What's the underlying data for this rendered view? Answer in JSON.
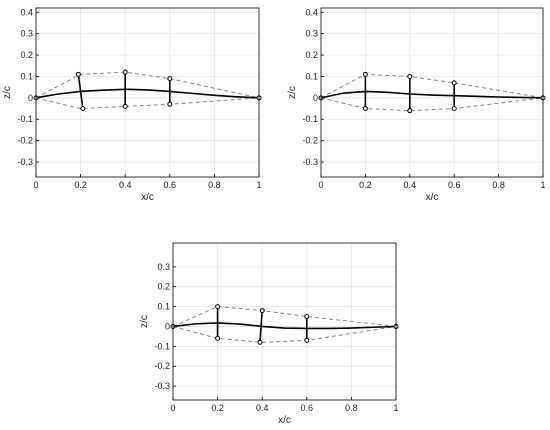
{
  "chart_data": [
    {
      "type": "line",
      "xlabel": "x/c",
      "ylabel": "z/c",
      "xlim": [
        0,
        1
      ],
      "ylim": [
        -0.37,
        0.42
      ],
      "xticks": [
        0,
        0.2,
        0.4,
        0.6,
        0.8,
        1
      ],
      "yticks": [
        -0.3,
        -0.2,
        -0.1,
        0,
        0.1,
        0.2,
        0.3,
        0.4
      ],
      "xtick_labels": [
        "0",
        "0.2",
        "0.4",
        "0.6",
        "0.8",
        "1"
      ],
      "ytick_labels": [
        "-0.3",
        "-0.2",
        "-0.1",
        "0",
        "0.1",
        "0.2",
        "0.3",
        "0.4"
      ],
      "grid": true,
      "series": [
        {
          "style": "dashed",
          "color": "#777777",
          "x": [
            0,
            0.2,
            0.4,
            0.6,
            1
          ],
          "y": [
            0,
            0.11,
            0.12,
            0.09,
            0
          ]
        },
        {
          "style": "dashed",
          "color": "#777777",
          "x": [
            0,
            0.2,
            0.4,
            0.6,
            1
          ],
          "y": [
            0,
            -0.05,
            -0.04,
            -0.03,
            0
          ]
        },
        {
          "style": "solid",
          "color": "#000000",
          "x": [
            0,
            0.1,
            0.2,
            0.3,
            0.4,
            0.5,
            0.6,
            0.7,
            0.8,
            0.9,
            1
          ],
          "y": [
            0,
            0.018,
            0.03,
            0.036,
            0.04,
            0.037,
            0.03,
            0.021,
            0.012,
            0.005,
            0
          ]
        }
      ],
      "struts": [
        {
          "top": [
            0.19,
            0.11
          ],
          "bottom": [
            0.21,
            -0.05
          ]
        },
        {
          "top": [
            0.4,
            0.12
          ],
          "bottom": [
            0.4,
            -0.04
          ]
        },
        {
          "top": [
            0.6,
            0.09
          ],
          "bottom": [
            0.6,
            -0.03
          ]
        }
      ]
    },
    {
      "type": "line",
      "xlabel": "x/c",
      "ylabel": "z/c",
      "xlim": [
        0,
        1
      ],
      "ylim": [
        -0.37,
        0.42
      ],
      "xticks": [
        0,
        0.2,
        0.4,
        0.6,
        0.8,
        1
      ],
      "yticks": [
        -0.3,
        -0.2,
        -0.1,
        0,
        0.1,
        0.2,
        0.3,
        0.4
      ],
      "xtick_labels": [
        "0",
        "0.2",
        "0.4",
        "0.6",
        "0.8",
        "1"
      ],
      "ytick_labels": [
        "-0.3",
        "-0.2",
        "-0.1",
        "0",
        "0.1",
        "0.2",
        "0.3",
        "0.4"
      ],
      "grid": true,
      "series": [
        {
          "style": "dashed",
          "color": "#777777",
          "x": [
            0,
            0.2,
            0.4,
            0.6,
            1
          ],
          "y": [
            0,
            0.11,
            0.1,
            0.07,
            0
          ]
        },
        {
          "style": "dashed",
          "color": "#777777",
          "x": [
            0,
            0.2,
            0.4,
            0.6,
            1
          ],
          "y": [
            0,
            -0.05,
            -0.06,
            -0.05,
            0
          ]
        },
        {
          "style": "solid",
          "color": "#000000",
          "x": [
            0,
            0.1,
            0.2,
            0.3,
            0.4,
            0.5,
            0.6,
            0.7,
            0.8,
            0.9,
            1
          ],
          "y": [
            0,
            0.022,
            0.03,
            0.026,
            0.018,
            0.013,
            0.01,
            0.007,
            0.004,
            0.002,
            0
          ]
        }
      ],
      "struts": [
        {
          "top": [
            0.2,
            0.11
          ],
          "bottom": [
            0.2,
            -0.05
          ]
        },
        {
          "top": [
            0.4,
            0.1
          ],
          "bottom": [
            0.4,
            -0.06
          ]
        },
        {
          "top": [
            0.6,
            0.07
          ],
          "bottom": [
            0.6,
            -0.05
          ]
        }
      ]
    },
    {
      "type": "line",
      "xlabel": "x/c",
      "ylabel": "z/c",
      "xlim": [
        0,
        1
      ],
      "ylim": [
        -0.37,
        0.42
      ],
      "xticks": [
        0,
        0.2,
        0.4,
        0.6,
        0.8,
        1
      ],
      "yticks": [
        -0.3,
        -0.2,
        -0.1,
        0,
        0.1,
        0.2,
        0.3
      ],
      "xtick_labels": [
        "0",
        "0.2",
        "0.4",
        "0.6",
        "0.8",
        "1"
      ],
      "ytick_labels": [
        "-0.3",
        "-0.2",
        "-0.1",
        "0",
        "0.1",
        "0.2",
        "0.3"
      ],
      "grid": true,
      "series": [
        {
          "style": "dashed",
          "color": "#777777",
          "x": [
            0,
            0.2,
            0.4,
            0.6,
            1
          ],
          "y": [
            0,
            0.1,
            0.08,
            0.05,
            0
          ]
        },
        {
          "style": "dashed",
          "color": "#777777",
          "x": [
            0,
            0.2,
            0.4,
            0.6,
            1
          ],
          "y": [
            0,
            -0.06,
            -0.08,
            -0.07,
            0
          ]
        },
        {
          "style": "solid",
          "color": "#000000",
          "x": [
            0,
            0.1,
            0.2,
            0.3,
            0.4,
            0.5,
            0.6,
            0.7,
            0.8,
            0.9,
            1
          ],
          "y": [
            0,
            0.013,
            0.018,
            0.012,
            0.0,
            -0.008,
            -0.01,
            -0.01,
            -0.008,
            -0.004,
            0
          ]
        }
      ],
      "struts": [
        {
          "top": [
            0.2,
            0.1
          ],
          "bottom": [
            0.2,
            -0.06
          ]
        },
        {
          "top": [
            0.4,
            0.08
          ],
          "bottom": [
            0.39,
            -0.08
          ]
        },
        {
          "top": [
            0.6,
            0.05
          ],
          "bottom": [
            0.6,
            -0.07
          ]
        }
      ]
    }
  ]
}
